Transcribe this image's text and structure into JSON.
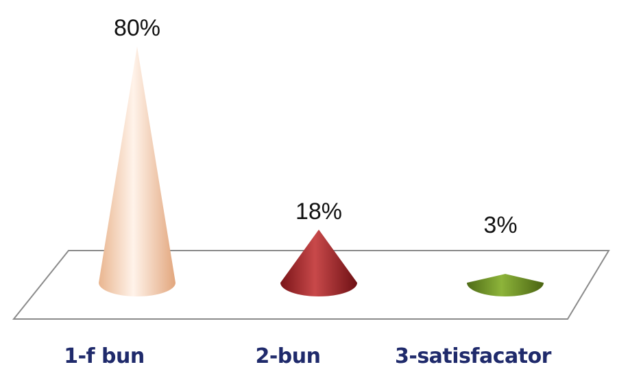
{
  "chart_data": {
    "type": "bar",
    "style": "3d-cone",
    "categories": [
      "1-f bun",
      "2-bun",
      "3-satisfacator"
    ],
    "values": [
      80,
      18,
      3
    ],
    "data_labels": [
      "80%",
      "18%",
      "3%"
    ],
    "ylim": [
      0,
      80
    ],
    "grid": false,
    "legend": "none",
    "title": "",
    "xlabel": "",
    "ylabel": "",
    "colors": {
      "series": [
        "#f6cdb0",
        "#a3262a",
        "#6b8e23"
      ],
      "category_label": "#1f2a6b",
      "floor_edge": "#8a8a8a"
    }
  }
}
